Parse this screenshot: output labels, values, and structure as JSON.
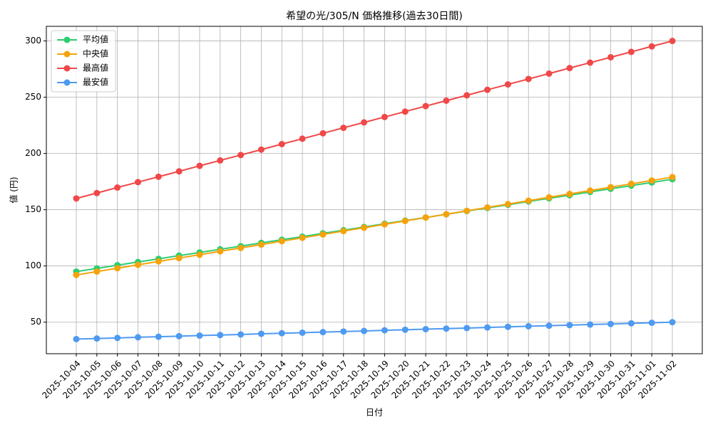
{
  "chart_data": {
    "type": "line",
    "title": "希望の光/305/N 価格推移(過去30日間)",
    "x_label": "日付",
    "y_label": "値 (円)",
    "categories": [
      "2025-10-04",
      "2025-10-05",
      "2025-10-06",
      "2025-10-07",
      "2025-10-08",
      "2025-10-09",
      "2025-10-10",
      "2025-10-11",
      "2025-10-12",
      "2025-10-13",
      "2025-10-14",
      "2025-10-15",
      "2025-10-16",
      "2025-10-17",
      "2025-10-18",
      "2025-10-19",
      "2025-10-20",
      "2025-10-21",
      "2025-10-22",
      "2025-10-23",
      "2025-10-24",
      "2025-10-25",
      "2025-10-26",
      "2025-10-27",
      "2025-10-28",
      "2025-10-29",
      "2025-10-30",
      "2025-10-31",
      "2025-11-01",
      "2025-11-02"
    ],
    "series": [
      {
        "name": "平均値",
        "color": "#2ecc71",
        "values": [
          95.0,
          97.8,
          100.7,
          103.5,
          106.3,
          109.2,
          112.0,
          114.8,
          117.6,
          120.5,
          123.3,
          126.1,
          129.0,
          131.8,
          134.6,
          137.5,
          140.3,
          143.1,
          145.9,
          148.8,
          151.6,
          154.4,
          157.3,
          160.1,
          162.9,
          165.8,
          168.6,
          171.4,
          174.2,
          177.1
        ]
      },
      {
        "name": "中央値",
        "color": "#f5a30c",
        "values": [
          92,
          95,
          98,
          101,
          104,
          107,
          110,
          113,
          116,
          119,
          122,
          125,
          128,
          131,
          134,
          137,
          140,
          143,
          146,
          149,
          152,
          155,
          158,
          161,
          164,
          167,
          170,
          173,
          176,
          179
        ]
      },
      {
        "name": "最高値",
        "color": "#f04848",
        "values": [
          160.0,
          164.8,
          169.7,
          174.5,
          179.3,
          184.1,
          189.0,
          193.8,
          198.6,
          203.4,
          208.3,
          213.1,
          217.9,
          222.8,
          227.6,
          232.4,
          237.2,
          242.1,
          246.9,
          251.7,
          256.6,
          261.4,
          266.2,
          271.0,
          275.9,
          280.7,
          285.5,
          290.3,
          295.2,
          300.0
        ]
      },
      {
        "name": "最安値",
        "color": "#4e9af1",
        "values": [
          35.0,
          35.5,
          36.0,
          36.6,
          37.1,
          37.6,
          38.1,
          38.6,
          39.1,
          39.7,
          40.2,
          40.7,
          41.2,
          41.7,
          42.2,
          42.8,
          43.3,
          43.8,
          44.3,
          44.8,
          45.3,
          45.9,
          46.4,
          46.9,
          47.4,
          47.9,
          48.4,
          49.0,
          49.5,
          50.0
        ]
      }
    ],
    "ylim": [
      22,
      313
    ],
    "yticks": [
      50,
      100,
      150,
      200,
      250,
      300
    ],
    "grid": true,
    "legend": "upper-left"
  }
}
